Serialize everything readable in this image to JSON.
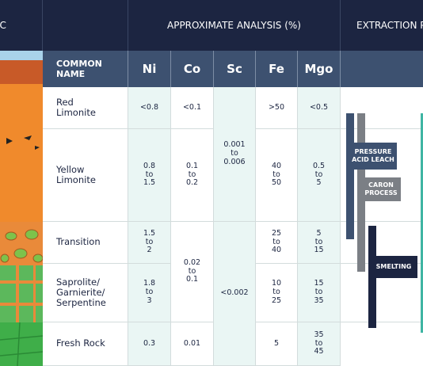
{
  "left_header": "IC",
  "header": {
    "analysis": "APPROXIMATE ANALYSIS (%)",
    "extraction": "EXTRACTION P"
  },
  "columns": [
    "COMMON NAME",
    "Ni",
    "Co",
    "Sc",
    "Fe",
    "Mgo"
  ],
  "rows": [
    {
      "name": "Red\nLimonite",
      "ni": "<0.8",
      "co": "<0.1",
      "fe": ">50",
      "mgo": "<0.5"
    },
    {
      "name": "Yellow\nLimonite",
      "ni": "0.8\nto\n1.5",
      "co": "0.1\nto\n0.2",
      "fe": "40\nto\n50",
      "mgo": "0.5\nto\n5"
    },
    {
      "name": "Transition",
      "ni": "1.5\nto\n2",
      "fe": "25\nto\n40",
      "mgo": "5\nto\n15"
    },
    {
      "name": "Saprolite/\nGarnierite/\nSerpentine",
      "ni": "1.8\nto\n3",
      "fe": "10\nto\n25",
      "mgo": "15\nto\n35"
    },
    {
      "name": "Fresh Rock",
      "ni": "0.3",
      "co": "0.01",
      "fe": "5",
      "mgo": "35\nto\n45"
    }
  ],
  "co_merged": "0.02\nto\n0.1",
  "sc": [
    "0.001\nto\n0.006",
    "<0.002"
  ],
  "processes": [
    "PRESSURE\nACID LEACH",
    "CARON\nPROCESS",
    "SMELTING"
  ]
}
